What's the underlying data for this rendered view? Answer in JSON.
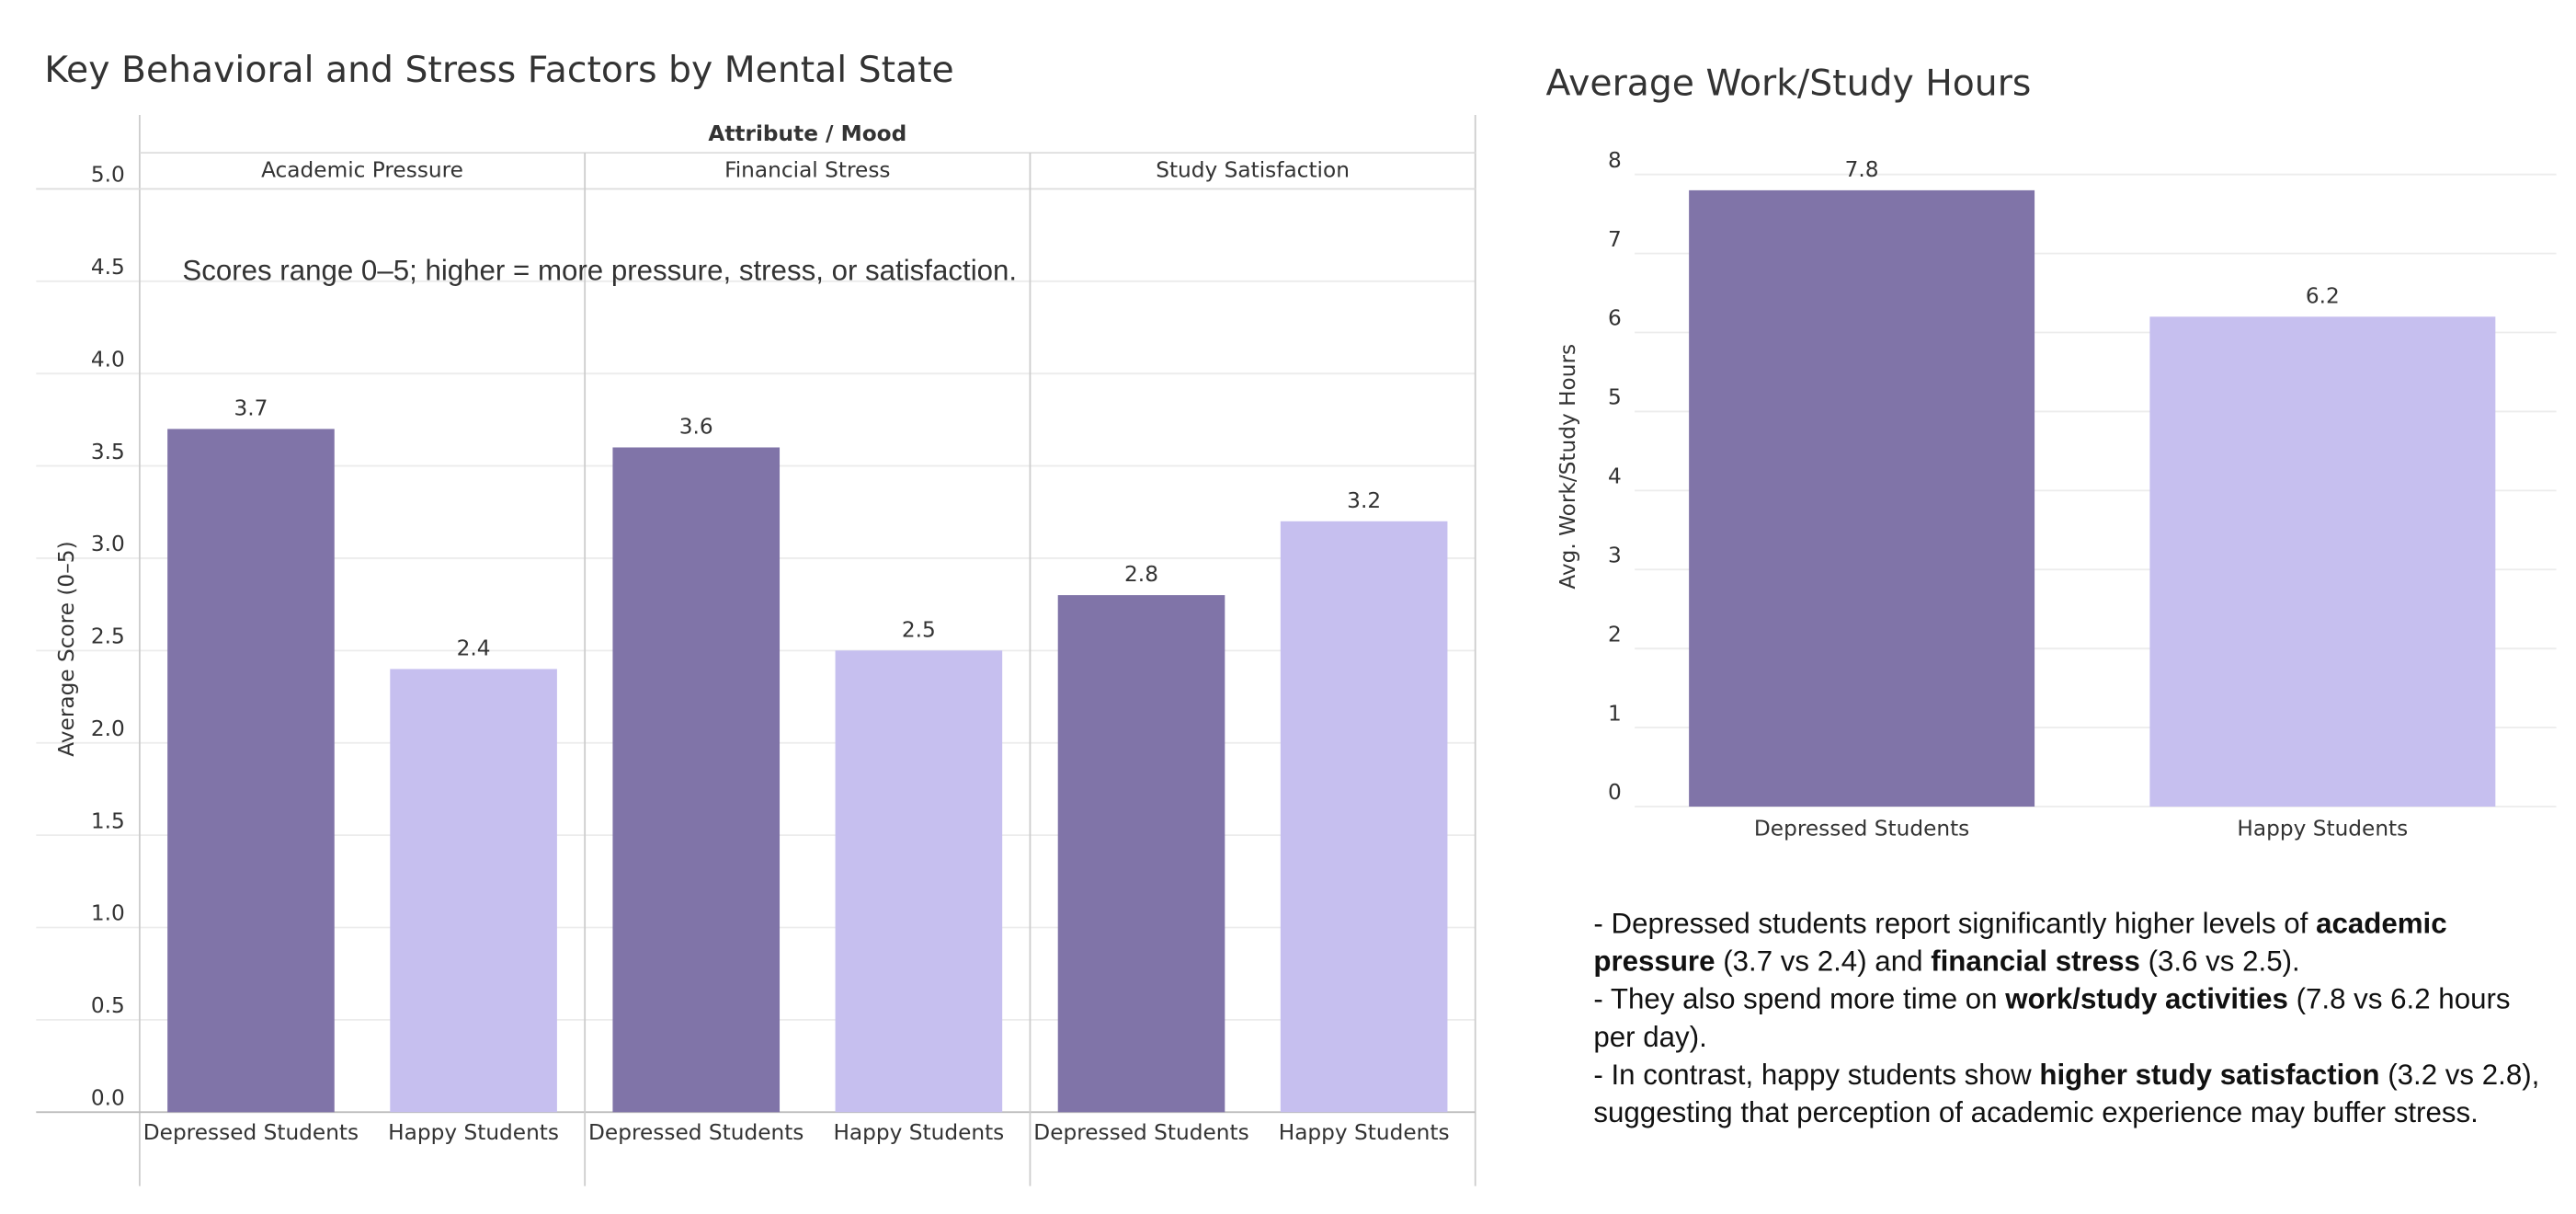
{
  "chart_data": [
    {
      "type": "faceted-bar",
      "title": "Key Behavioral and Stress Factors by Mental State",
      "facet_header": "Attribute / Mood",
      "categories": [
        "Academic Pressure",
        "Financial Stress",
        "Study Satisfaction"
      ],
      "series": [
        {
          "name": "Depressed Students",
          "color": "#8074a8",
          "values": [
            3.7,
            3.6,
            2.8
          ]
        },
        {
          "name": "Happy Students",
          "color": "#c6bfef",
          "values": [
            2.4,
            2.5,
            3.2
          ]
        }
      ],
      "annotation": "Scores range 0–5; higher = more pressure, stress, or satisfaction.",
      "ylabel": "Average Score (0–5)",
      "ylim": [
        0,
        5
      ],
      "yticks": [
        {
          "value": 0,
          "label": "0.0"
        },
        {
          "value": 0.5,
          "label": "0.5"
        },
        {
          "value": 1,
          "label": "1.0"
        },
        {
          "value": 1.5,
          "label": "1.5"
        },
        {
          "value": 2,
          "label": "2.0"
        },
        {
          "value": 2.5,
          "label": "2.5"
        },
        {
          "value": 3,
          "label": "3.0"
        },
        {
          "value": 3.5,
          "label": "3.5"
        },
        {
          "value": 4,
          "label": "4.0"
        },
        {
          "value": 4.5,
          "label": "4.5"
        },
        {
          "value": 5,
          "label": "5.0"
        }
      ],
      "grid": true
    },
    {
      "type": "bar",
      "title": "Average Work/Study Hours",
      "categories": [
        "Depressed Students",
        "Happy Students"
      ],
      "values": [
        7.8,
        6.2
      ],
      "colors": [
        "#8074a8",
        "#c6bfef"
      ],
      "ylabel": "Avg. Work/Study Hours",
      "ylim": [
        0,
        8.2
      ],
      "yticks": [
        0,
        1,
        2,
        3,
        4,
        5,
        6,
        7,
        8
      ],
      "grid": true
    }
  ],
  "notes": [
    [
      {
        "text": "- Depressed students report significantly higher levels of ",
        "bold": false
      },
      {
        "text": "academic pressure",
        "bold": true
      },
      {
        "text": " (3.7 vs 2.4) and ",
        "bold": false
      },
      {
        "text": "financial stress",
        "bold": true
      },
      {
        "text": " (3.6 vs 2.5).",
        "bold": false
      }
    ],
    [
      {
        "text": "- They also spend more time on ",
        "bold": false
      },
      {
        "text": "work/study activities",
        "bold": true
      },
      {
        "text": " (7.8 vs 6.2 hours per day).",
        "bold": false
      }
    ],
    [
      {
        "text": "- In contrast, happy students show ",
        "bold": false
      },
      {
        "text": "higher study satisfaction",
        "bold": true
      },
      {
        "text": " (3.2 vs 2.8), suggesting that perception of academic experience may buffer stress.",
        "bold": false
      }
    ]
  ]
}
